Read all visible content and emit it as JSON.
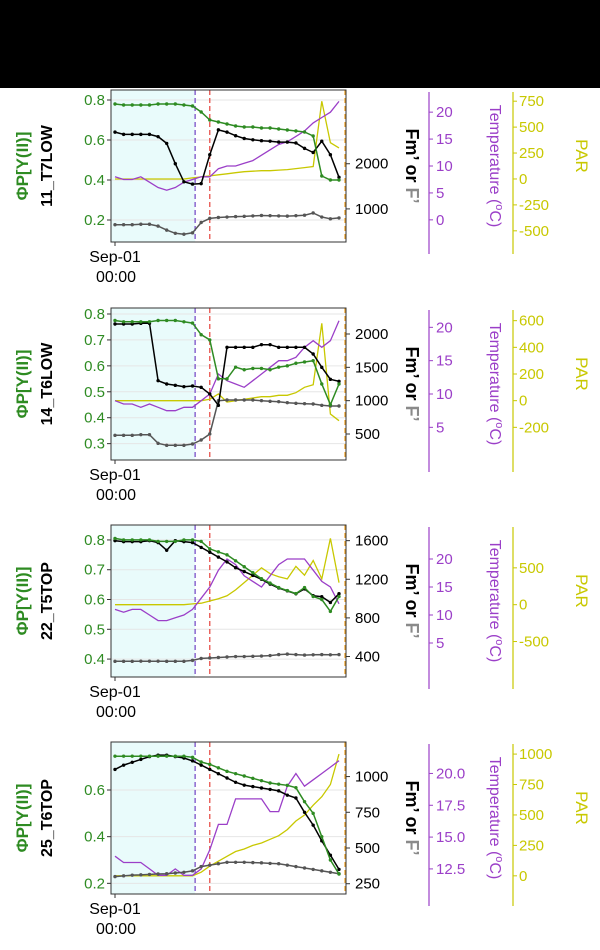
{
  "colors": {
    "phi": "#2e8b22",
    "fm": "#000000",
    "f": "#555555",
    "temp": "#9b3fc8",
    "par": "#c8c800",
    "shade": "#e9fbfb",
    "vline_purple": "#7a4fc8",
    "vline_red": "#e8504a",
    "vline_orange": "#f0a020"
  },
  "labels": {
    "phi_axis": "ΦP[Y(II)]",
    "fm_axis_part1": "Fm’",
    "fm_axis_part2": " or ",
    "fm_axis_part3": "F’",
    "temp_axis_main": "Temperature (",
    "temp_axis_sup": "o",
    "temp_axis_end": "C)",
    "par_axis": "PAR",
    "x_tick_line1": "Sep-01",
    "x_tick_line2": "00:00"
  },
  "chart_data": [
    {
      "type": "line",
      "panel_label": "11_T7LOW",
      "ylim_phi": [
        0.12,
        0.82
      ],
      "ylim_f": [
        400,
        3500
      ],
      "ylim_temp": [
        -3,
        23
      ],
      "ylim_par": [
        -550,
        800
      ],
      "yticks_phi": [
        0.2,
        0.4,
        0.6,
        0.8
      ],
      "yticks_f": [
        1000,
        2000
      ],
      "yticks_temp": [
        0,
        5,
        10,
        15,
        20
      ],
      "yticks_par": [
        -500,
        -250,
        0,
        250,
        500,
        750
      ],
      "series": [
        {
          "key": "phi",
          "values": [
            0.78,
            0.775,
            0.775,
            0.775,
            0.775,
            0.78,
            0.78,
            0.78,
            0.775,
            0.77,
            0.74,
            0.7,
            0.69,
            0.68,
            0.67,
            0.665,
            0.665,
            0.66,
            0.66,
            0.655,
            0.65,
            0.645,
            0.64,
            0.62,
            0.42,
            0.4,
            0.4
          ]
        },
        {
          "key": "fm",
          "values": [
            2700,
            2650,
            2650,
            2650,
            2650,
            2600,
            2450,
            2000,
            1600,
            1550,
            1560,
            2200,
            2750,
            2700,
            2620,
            2560,
            2530,
            2510,
            2500,
            2480,
            2480,
            2460,
            2340,
            2250,
            2500,
            2200,
            1700
          ]
        },
        {
          "key": "f",
          "values": [
            650,
            650,
            650,
            660,
            660,
            620,
            530,
            460,
            440,
            470,
            700,
            790,
            810,
            820,
            830,
            835,
            845,
            855,
            850,
            845,
            840,
            850,
            860,
            910,
            820,
            780,
            800
          ]
        },
        {
          "key": "temp",
          "values": [
            8,
            7.5,
            7.5,
            8,
            7,
            6,
            5.5,
            6,
            7,
            7.5,
            8,
            8,
            9.5,
            10,
            10,
            10.5,
            11,
            12,
            13,
            14,
            14.5,
            15.5,
            16.5,
            18,
            19,
            20,
            22
          ]
        },
        {
          "key": "par",
          "values": [
            0,
            0,
            0,
            0,
            0,
            0,
            0,
            0,
            0,
            10,
            20,
            30,
            40,
            50,
            60,
            70,
            75,
            80,
            80,
            85,
            90,
            100,
            110,
            120,
            750,
            350,
            300
          ]
        }
      ],
      "vlines": [
        {
          "x": 9.3,
          "color": "vline_purple"
        },
        {
          "x": 11,
          "color": "vline_red"
        },
        {
          "x": 26.7,
          "color": "vline_orange"
        }
      ]
    },
    {
      "type": "line",
      "panel_label": "14_T6LOW",
      "ylim_phi": [
        0.26,
        0.8
      ],
      "ylim_f": [
        200,
        2300
      ],
      "ylim_temp": [
        1,
        22
      ],
      "ylim_par": [
        -400,
        650
      ],
      "yticks_phi": [
        0.3,
        0.4,
        0.5,
        0.6,
        0.7,
        0.8
      ],
      "yticks_f": [
        500,
        1000,
        1500,
        2000
      ],
      "yticks_temp": [
        5,
        10,
        15,
        20
      ],
      "yticks_par": [
        -200,
        0,
        200,
        400,
        600
      ],
      "series": [
        {
          "key": "phi",
          "values": [
            0.775,
            0.77,
            0.77,
            0.77,
            0.77,
            0.775,
            0.775,
            0.775,
            0.77,
            0.765,
            0.72,
            0.7,
            0.55,
            0.55,
            0.595,
            0.585,
            0.59,
            0.59,
            0.585,
            0.595,
            0.6,
            0.61,
            0.615,
            0.62,
            0.53,
            0.45,
            0.53
          ]
        },
        {
          "key": "fm",
          "values": [
            2150,
            2150,
            2150,
            2160,
            2160,
            1300,
            1250,
            1230,
            1210,
            1220,
            1200,
            1100,
            930,
            1800,
            1800,
            1800,
            1800,
            1840,
            1840,
            1800,
            1800,
            1800,
            1800,
            1700,
            1500,
            1320,
            1290
          ]
        },
        {
          "key": "f",
          "values": [
            480,
            480,
            480,
            490,
            490,
            360,
            330,
            330,
            330,
            350,
            410,
            500,
            1000,
            1010,
            1010,
            1010,
            1010,
            1000,
            990,
            985,
            970,
            960,
            955,
            950,
            930,
            920,
            920
          ]
        },
        {
          "key": "temp",
          "values": [
            9,
            8.5,
            8.5,
            8,
            8.5,
            8,
            7.5,
            7.5,
            8,
            8,
            9,
            10,
            13,
            12,
            11.5,
            11,
            12,
            13,
            14,
            15,
            15,
            15.5,
            17,
            18,
            17,
            18,
            21
          ]
        },
        {
          "key": "par",
          "values": [
            0,
            0,
            0,
            0,
            0,
            0,
            0,
            0,
            0,
            0,
            0,
            10,
            50,
            -10,
            0,
            10,
            20,
            30,
            30,
            40,
            40,
            60,
            100,
            120,
            580,
            -100,
            -150
          ]
        }
      ],
      "vlines": [
        {
          "x": 9.3,
          "color": "vline_purple"
        },
        {
          "x": 11,
          "color": "vline_red"
        },
        {
          "x": 26.7,
          "color": "vline_orange"
        }
      ]
    },
    {
      "type": "line",
      "panel_label": "22_T5TOP",
      "ylim_phi": [
        0.36,
        0.83
      ],
      "ylim_f": [
        250,
        1700
      ],
      "ylim_temp": [
        0,
        25
      ],
      "ylim_par": [
        -900,
        1000
      ],
      "yticks_phi": [
        0.4,
        0.5,
        0.6,
        0.7,
        0.8
      ],
      "yticks_f": [
        400,
        800,
        1200,
        1600
      ],
      "yticks_temp": [
        5,
        10,
        15,
        20
      ],
      "yticks_par": [
        -500,
        0,
        500
      ],
      "series": [
        {
          "key": "phi",
          "values": [
            0.805,
            0.8,
            0.8,
            0.8,
            0.8,
            0.795,
            0.795,
            0.795,
            0.8,
            0.8,
            0.795,
            0.77,
            0.76,
            0.75,
            0.73,
            0.71,
            0.69,
            0.67,
            0.655,
            0.64,
            0.63,
            0.62,
            0.64,
            0.61,
            0.6,
            0.56,
            0.61
          ]
        },
        {
          "key": "fm",
          "values": [
            1600,
            1590,
            1590,
            1590,
            1600,
            1580,
            1500,
            1600,
            1590,
            1580,
            1530,
            1480,
            1430,
            1380,
            1320,
            1280,
            1240,
            1200,
            1150,
            1110,
            1080,
            1050,
            1100,
            1030,
            1020,
            960,
            1050
          ]
        },
        {
          "key": "f",
          "values": [
            350,
            350,
            350,
            352,
            352,
            352,
            350,
            350,
            350,
            360,
            380,
            385,
            390,
            395,
            400,
            400,
            402,
            405,
            410,
            420,
            425,
            420,
            415,
            418,
            420,
            418,
            420
          ]
        },
        {
          "key": "temp",
          "values": [
            11,
            10.5,
            11,
            11,
            10,
            9,
            9,
            9.5,
            10,
            11,
            13,
            15,
            18,
            20,
            19,
            17,
            16,
            15,
            17,
            19,
            20,
            20,
            20,
            18,
            16,
            15,
            12
          ]
        },
        {
          "key": "par",
          "values": [
            0,
            0,
            0,
            0,
            0,
            0,
            0,
            0,
            0,
            10,
            20,
            50,
            80,
            120,
            200,
            300,
            400,
            500,
            420,
            380,
            350,
            520,
            400,
            600,
            350,
            900,
            300
          ]
        }
      ],
      "vlines": [
        {
          "x": 9.3,
          "color": "vline_purple"
        },
        {
          "x": 11,
          "color": "vline_red"
        },
        {
          "x": 26.7,
          "color": "vline_orange"
        }
      ]
    },
    {
      "type": "line",
      "panel_label": "25_T6TOP",
      "ylim_phi": [
        0.18,
        0.78
      ],
      "ylim_f": [
        220,
        1200
      ],
      "ylim_temp": [
        11,
        22
      ],
      "ylim_par": [
        -100,
        1050
      ],
      "yticks_phi": [
        0.2,
        0.4,
        0.6
      ],
      "yticks_f": [
        250,
        500,
        750,
        1000
      ],
      "yticks_temp": [
        12.5,
        15.0,
        17.5,
        20.0
      ],
      "yticks_par": [
        0,
        250,
        500,
        750,
        1000
      ],
      "series": [
        {
          "key": "phi",
          "values": [
            0.745,
            0.745,
            0.745,
            0.745,
            0.745,
            0.745,
            0.745,
            0.745,
            0.745,
            0.74,
            0.72,
            0.71,
            0.695,
            0.68,
            0.67,
            0.66,
            0.65,
            0.64,
            0.63,
            0.625,
            0.62,
            0.61,
            0.55,
            0.5,
            0.4,
            0.3,
            0.24
          ]
        },
        {
          "key": "fm",
          "values": [
            1050,
            1080,
            1100,
            1120,
            1140,
            1150,
            1150,
            1140,
            1130,
            1110,
            1080,
            1050,
            1020,
            990,
            960,
            940,
            930,
            920,
            910,
            900,
            870,
            850,
            750,
            660,
            550,
            450,
            350
          ]
        },
        {
          "key": "f",
          "values": [
            300,
            305,
            310,
            312,
            315,
            318,
            320,
            325,
            330,
            340,
            370,
            380,
            390,
            400,
            400,
            400,
            398,
            396,
            392,
            390,
            380,
            370,
            360,
            350,
            340,
            330,
            320
          ]
        },
        {
          "key": "temp",
          "values": [
            13.5,
            13,
            13,
            13,
            12.5,
            12,
            12,
            12.5,
            12,
            12,
            12.5,
            14,
            16,
            16,
            18,
            18,
            18,
            18,
            17,
            17,
            19,
            20,
            19,
            19.5,
            20,
            20.5,
            21
          ]
        },
        {
          "key": "par",
          "values": [
            0,
            0,
            0,
            0,
            0,
            0,
            0,
            0,
            0,
            0,
            30,
            80,
            120,
            160,
            200,
            220,
            250,
            270,
            300,
            330,
            380,
            450,
            500,
            580,
            650,
            750,
            1000
          ]
        }
      ],
      "vlines": [
        {
          "x": 9.3,
          "color": "vline_purple"
        },
        {
          "x": 11,
          "color": "vline_red"
        },
        {
          "x": 26.7,
          "color": "vline_orange"
        }
      ]
    }
  ]
}
